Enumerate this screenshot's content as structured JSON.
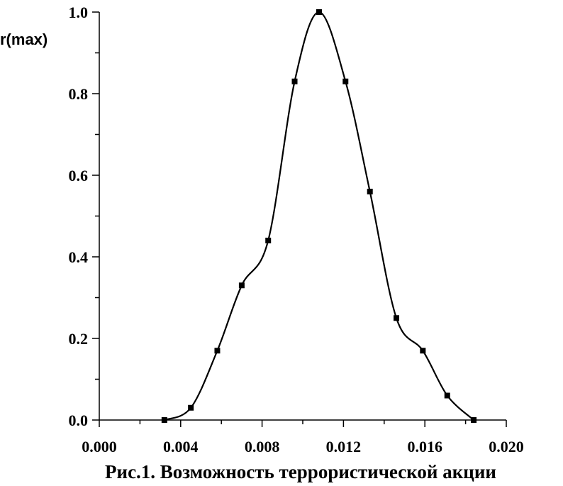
{
  "chart_data": {
    "type": "line",
    "ylabel": "r(max)",
    "xlabel": "",
    "caption": "Рис.1.  Возможность террористической акции",
    "xlim": [
      0.0,
      0.02
    ],
    "ylim": [
      0.0,
      1.0
    ],
    "x_ticks": [
      "0.000",
      "0.004",
      "0.008",
      "0.012",
      "0.016",
      "0.020"
    ],
    "y_ticks": [
      "0.0",
      "0.2",
      "0.4",
      "0.6",
      "0.8",
      "1.0"
    ],
    "grid": false,
    "marker": "square",
    "line_color": "#000000",
    "series": [
      {
        "x": [
          0.0032,
          0.0045,
          0.0058,
          0.007,
          0.0083,
          0.0096,
          0.0108,
          0.0121,
          0.0133,
          0.0146,
          0.0159,
          0.0171,
          0.0184
        ],
        "y": [
          0.0,
          0.03,
          0.17,
          0.33,
          0.44,
          0.83,
          1.0,
          0.83,
          0.56,
          0.25,
          0.17,
          0.06,
          0.0
        ]
      }
    ]
  }
}
